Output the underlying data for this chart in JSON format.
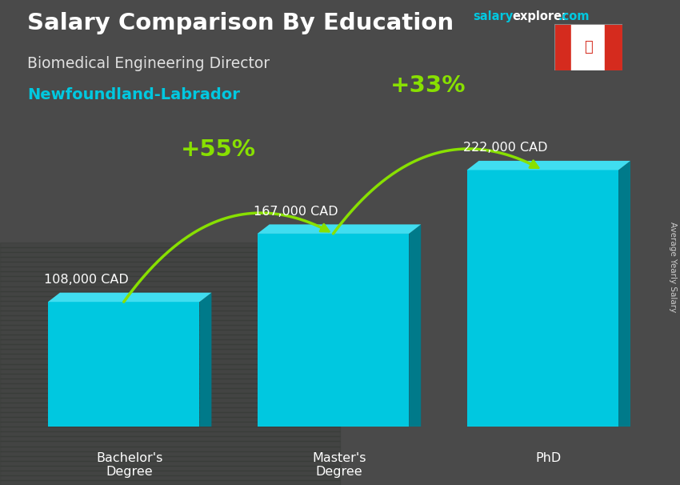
{
  "title": "Salary Comparison By Education",
  "subtitle_job": "Biomedical Engineering Director",
  "subtitle_location": "Newfoundland-Labrador",
  "categories": [
    "Bachelor's\nDegree",
    "Master's\nDegree",
    "PhD"
  ],
  "values": [
    108000,
    167000,
    222000
  ],
  "value_labels": [
    "108,000 CAD",
    "167,000 CAD",
    "222,000 CAD"
  ],
  "pct_labels": [
    "+55%",
    "+33%"
  ],
  "bar_color_face": "#00c8e0",
  "bar_color_side": "#007a8a",
  "bar_color_top": "#40ddf0",
  "bg_color": "#5a5a5a",
  "title_color": "#ffffff",
  "subtitle_job_color": "#e0e0e0",
  "subtitle_location_color": "#00c8e0",
  "value_label_color": "#ffffff",
  "pct_color": "#88e000",
  "arrow_color": "#88e000",
  "side_label_color": "#cccccc",
  "side_label_text": "Average Yearly Salary",
  "watermark_salary_color": "#00c8e0",
  "watermark_explorer_color": "#ffffff",
  "watermark_com_color": "#00c8e0",
  "ylim_max": 260000,
  "bar_bottom": 30000,
  "figsize": [
    8.5,
    6.06
  ],
  "dpi": 100
}
